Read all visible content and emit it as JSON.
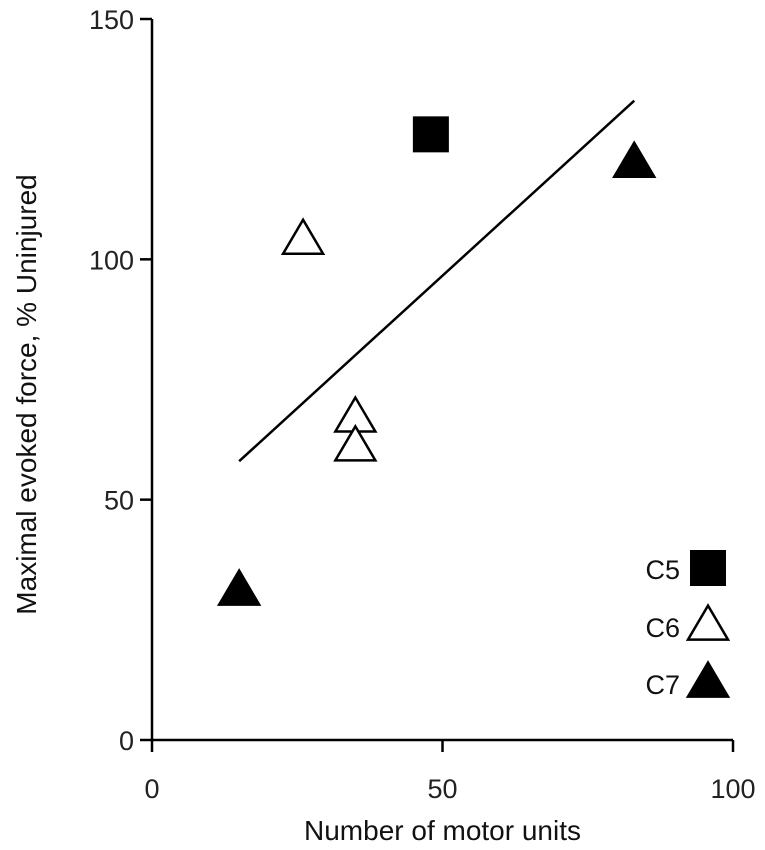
{
  "chart_data": {
    "type": "scatter",
    "title": "",
    "xlabel": "Number of motor units",
    "ylabel": "Maximal evoked force, % Uninjured",
    "xlim": [
      0,
      100
    ],
    "ylim": [
      0,
      150
    ],
    "xticks": [
      0,
      50,
      100
    ],
    "yticks": [
      0,
      50,
      100,
      150
    ],
    "grid": false,
    "legend_position": "bottom-right",
    "series": [
      {
        "name": "C5",
        "marker": "square",
        "fill": "#000000",
        "stroke": "#000000",
        "points": [
          {
            "x": 48,
            "y": 126
          }
        ]
      },
      {
        "name": "C6",
        "marker": "triangle",
        "fill": "#ffffff",
        "stroke": "#000000",
        "points": [
          {
            "x": 26,
            "y": 104
          },
          {
            "x": 35,
            "y": 67
          },
          {
            "x": 35,
            "y": 61
          }
        ]
      },
      {
        "name": "C7",
        "marker": "triangle",
        "fill": "#000000",
        "stroke": "#000000",
        "points": [
          {
            "x": 15,
            "y": 31
          },
          {
            "x": 83,
            "y": 120
          }
        ]
      }
    ],
    "trendline": {
      "x": [
        15,
        83
      ],
      "y": [
        58,
        133
      ]
    }
  }
}
